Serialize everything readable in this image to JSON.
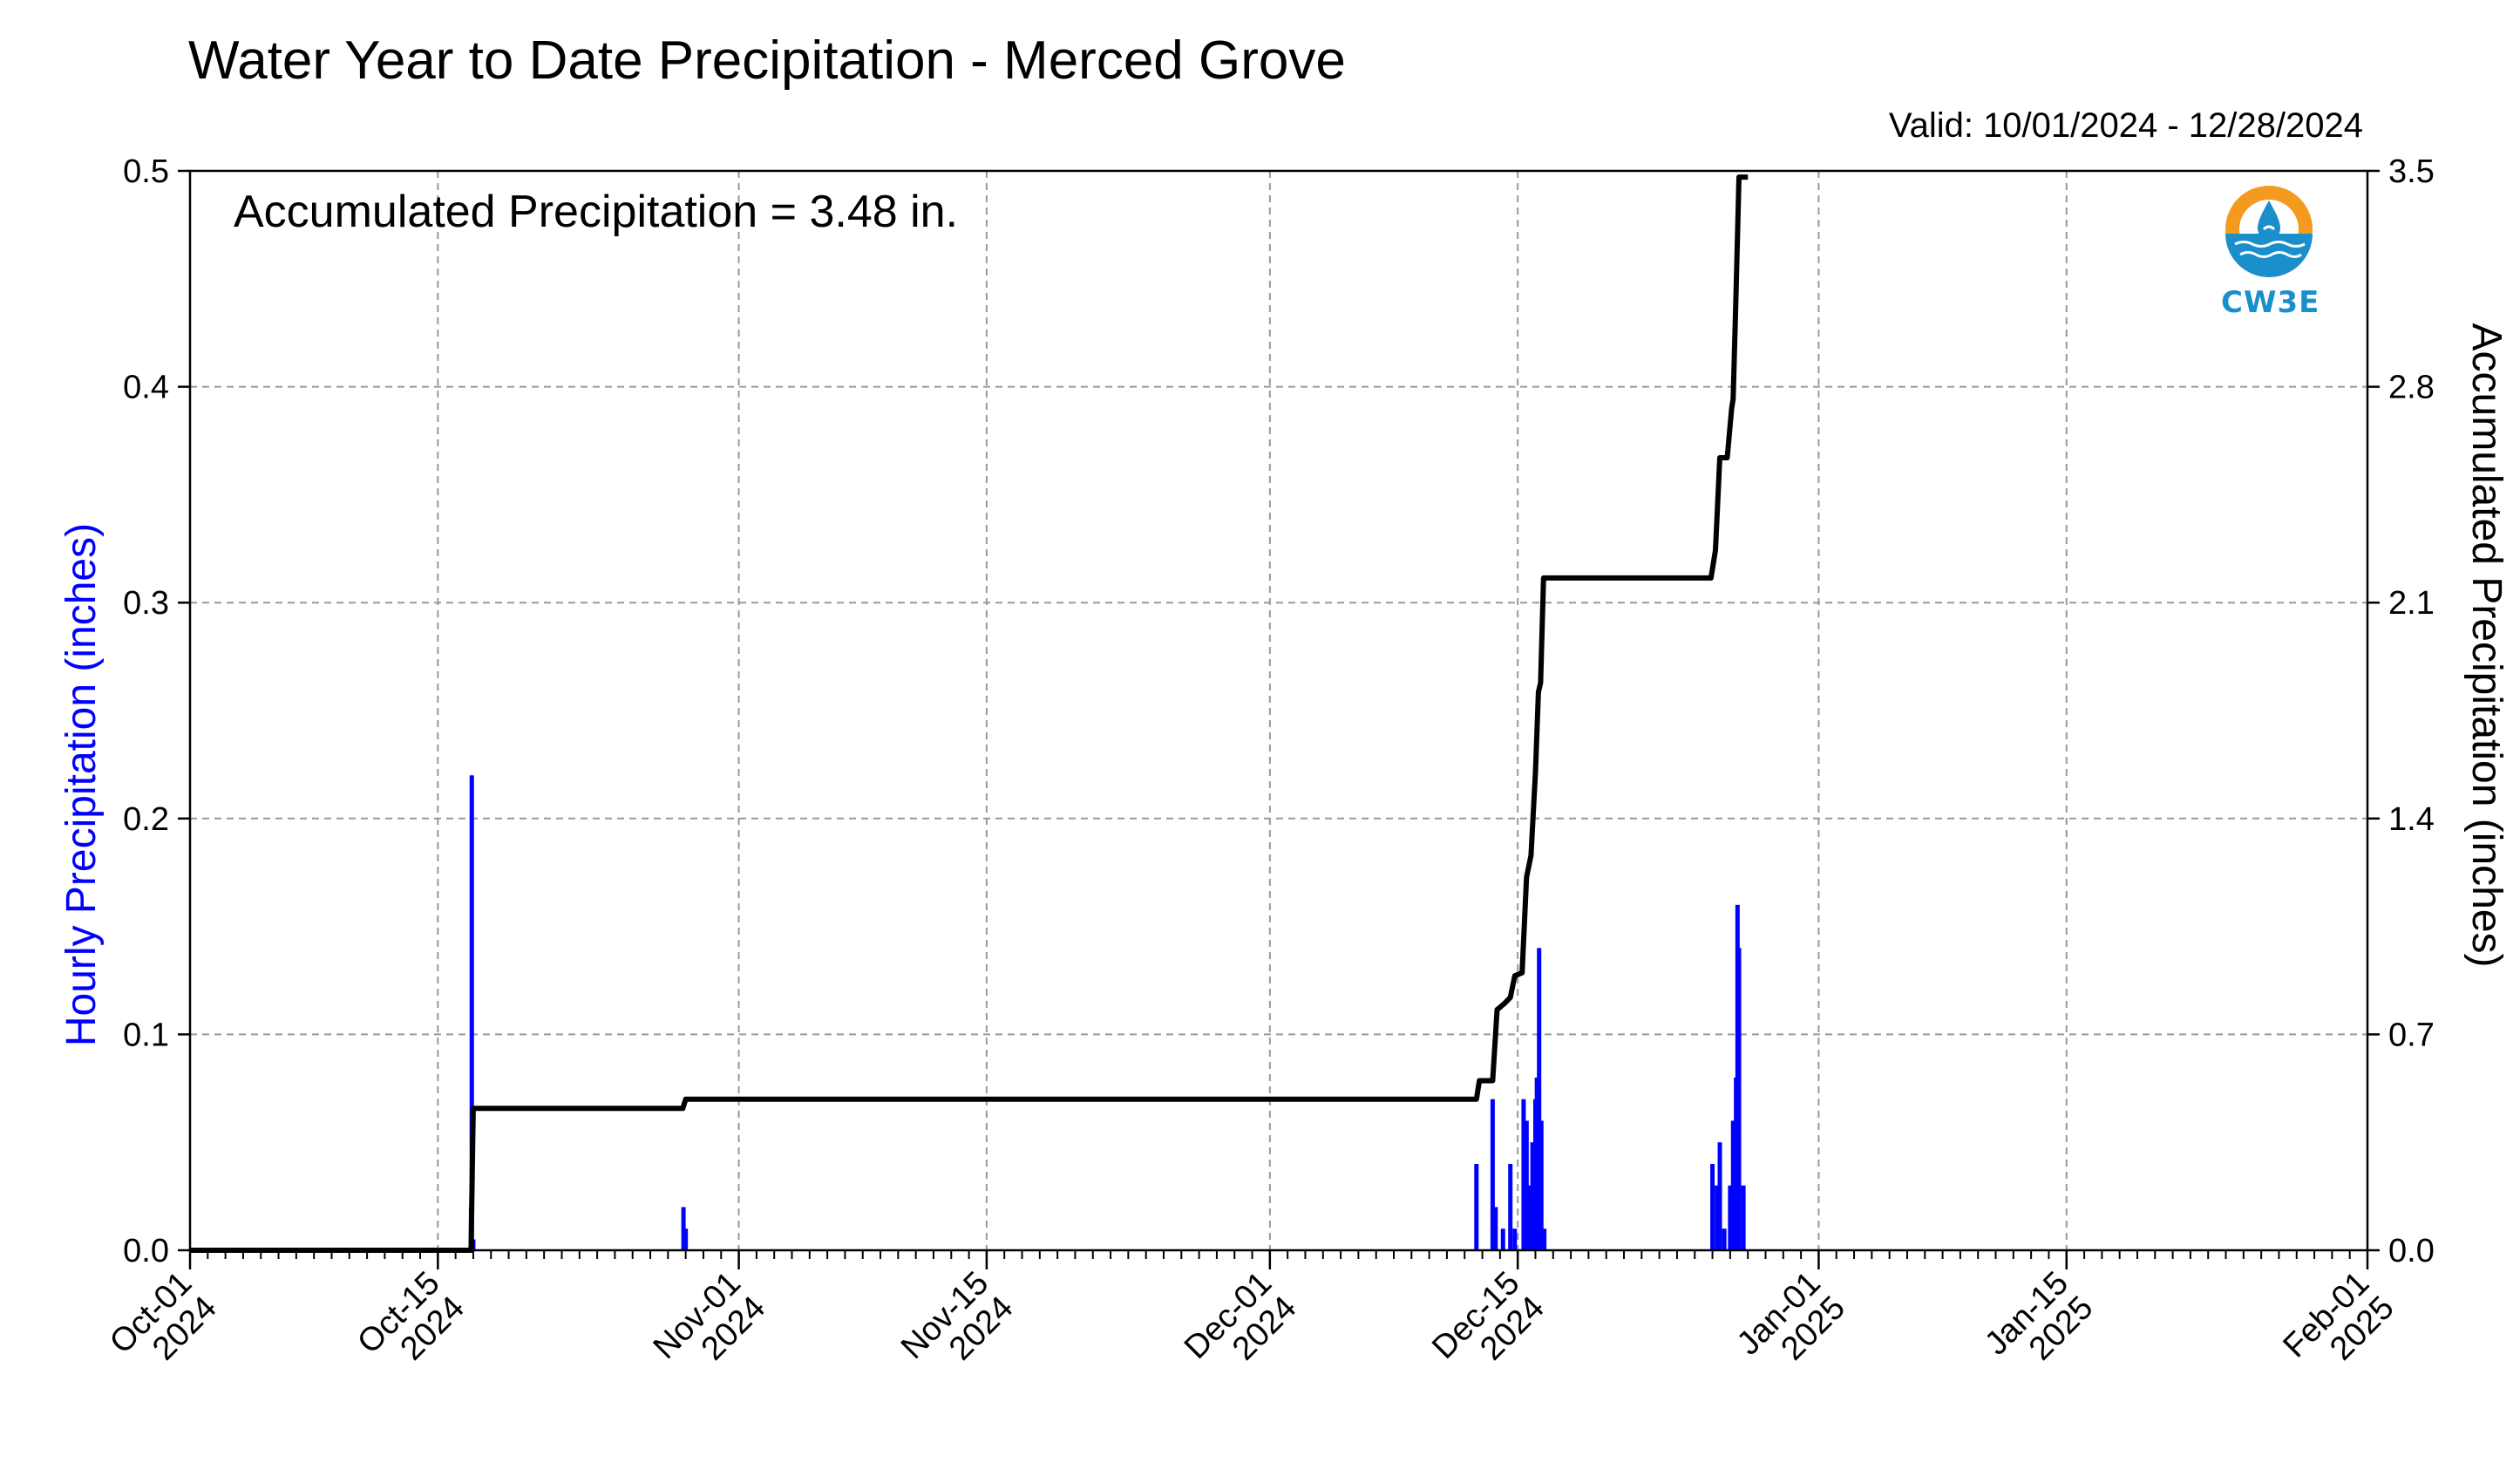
{
  "header": {
    "title": "Water Year to Date Precipitation - Merced Grove",
    "valid": "Valid: 10/01/2024 - 12/28/2024"
  },
  "annotation": "Accumulated Precipitation = 3.48 in.",
  "logo": {
    "text": "CW3E",
    "colors": {
      "orange": "#f39a1f",
      "blue": "#1b8fc9"
    }
  },
  "colors": {
    "bars": "#0000ff",
    "line": "#000000",
    "grid": "#999999"
  },
  "chart_data": {
    "type": "bar",
    "title": "Water Year to Date Precipitation - Merced Grove",
    "x_range": [
      "2024-10-01",
      "2025-02-01"
    ],
    "x_ticks": [
      {
        "date": "2024-10-01",
        "label": [
          "Oct-01",
          "2024"
        ]
      },
      {
        "date": "2024-10-15",
        "label": [
          "Oct-15",
          "2024"
        ]
      },
      {
        "date": "2024-11-01",
        "label": [
          "Nov-01",
          "2024"
        ]
      },
      {
        "date": "2024-11-15",
        "label": [
          "Nov-15",
          "2024"
        ]
      },
      {
        "date": "2024-12-01",
        "label": [
          "Dec-01",
          "2024"
        ]
      },
      {
        "date": "2024-12-15",
        "label": [
          "Dec-15",
          "2024"
        ]
      },
      {
        "date": "2025-01-01",
        "label": [
          "Jan-01",
          "2025"
        ]
      },
      {
        "date": "2025-01-15",
        "label": [
          "Jan-15",
          "2025"
        ]
      },
      {
        "date": "2025-02-01",
        "label": [
          "Feb-01",
          "2025"
        ]
      }
    ],
    "y_left": {
      "label": "Hourly Precipitation (inches)",
      "range": [
        0,
        0.5
      ],
      "ticks": [
        "0.0",
        "0.1",
        "0.2",
        "0.3",
        "0.4",
        "0.5"
      ]
    },
    "y_right": {
      "label": "Accumulated Precipitation (inches)",
      "range": [
        0,
        3.5
      ],
      "ticks": [
        "0.0",
        "0.7",
        "1.4",
        "2.1",
        "2.8",
        "3.5"
      ]
    },
    "grid": true,
    "series": [
      {
        "type": "bar",
        "axis": "left",
        "points": [
          [
            "2024-10-16T21",
            0.02
          ],
          [
            "2024-10-16T22",
            0.22
          ],
          [
            "2024-10-17T00",
            0.005
          ],
          [
            "2024-10-28T21",
            0.02
          ],
          [
            "2024-10-29T00",
            0.01
          ],
          [
            "2024-12-12T16",
            0.04
          ],
          [
            "2024-12-13T14",
            0.07
          ],
          [
            "2024-12-13T18",
            0.02
          ],
          [
            "2024-12-14T04",
            0.01
          ],
          [
            "2024-12-14T14",
            0.04
          ],
          [
            "2024-12-14T20",
            0.01
          ],
          [
            "2024-12-15T08",
            0.07
          ],
          [
            "2024-12-15T12",
            0.06
          ],
          [
            "2024-12-15T16",
            0.03
          ],
          [
            "2024-12-15T20",
            0.05
          ],
          [
            "2024-12-16T00",
            0.07
          ],
          [
            "2024-12-16T02",
            0.08
          ],
          [
            "2024-12-16T05",
            0.14
          ],
          [
            "2024-12-16T08",
            0.06
          ],
          [
            "2024-12-16T12",
            0.01
          ],
          [
            "2024-12-26T00",
            0.04
          ],
          [
            "2024-12-26T06",
            0.03
          ],
          [
            "2024-12-26T10",
            0.05
          ],
          [
            "2024-12-26T16",
            0.01
          ],
          [
            "2024-12-27T00",
            0.03
          ],
          [
            "2024-12-27T04",
            0.06
          ],
          [
            "2024-12-27T08",
            0.08
          ],
          [
            "2024-12-27T10",
            0.16
          ],
          [
            "2024-12-27T12",
            0.14
          ],
          [
            "2024-12-27T18",
            0.03
          ]
        ]
      },
      {
        "type": "line",
        "axis": "right",
        "points": [
          [
            "2024-10-01T00",
            0.0
          ],
          [
            "2024-10-16T21",
            0.0
          ],
          [
            "2024-10-17T00",
            0.46
          ],
          [
            "2024-10-28T20",
            0.46
          ],
          [
            "2024-10-29T00",
            0.49
          ],
          [
            "2024-12-12T16",
            0.49
          ],
          [
            "2024-12-12T20",
            0.55
          ],
          [
            "2024-12-13T14",
            0.55
          ],
          [
            "2024-12-13T20",
            0.78
          ],
          [
            "2024-12-14T06",
            0.8
          ],
          [
            "2024-12-14T14",
            0.82
          ],
          [
            "2024-12-14T20",
            0.89
          ],
          [
            "2024-12-15T06",
            0.9
          ],
          [
            "2024-12-15T12",
            1.21
          ],
          [
            "2024-12-15T18",
            1.28
          ],
          [
            "2024-12-16T00",
            1.55
          ],
          [
            "2024-12-16T04",
            1.81
          ],
          [
            "2024-12-16T07",
            1.84
          ],
          [
            "2024-12-16T11",
            2.18
          ],
          [
            "2024-12-25T22",
            2.18
          ],
          [
            "2024-12-26T04",
            2.27
          ],
          [
            "2024-12-26T10",
            2.57
          ],
          [
            "2024-12-26T20",
            2.57
          ],
          [
            "2024-12-27T02",
            2.73
          ],
          [
            "2024-12-27T04",
            2.76
          ],
          [
            "2024-12-27T08",
            3.1
          ],
          [
            "2024-12-27T12",
            3.48
          ],
          [
            "2024-12-28T00",
            3.48
          ]
        ]
      }
    ]
  }
}
